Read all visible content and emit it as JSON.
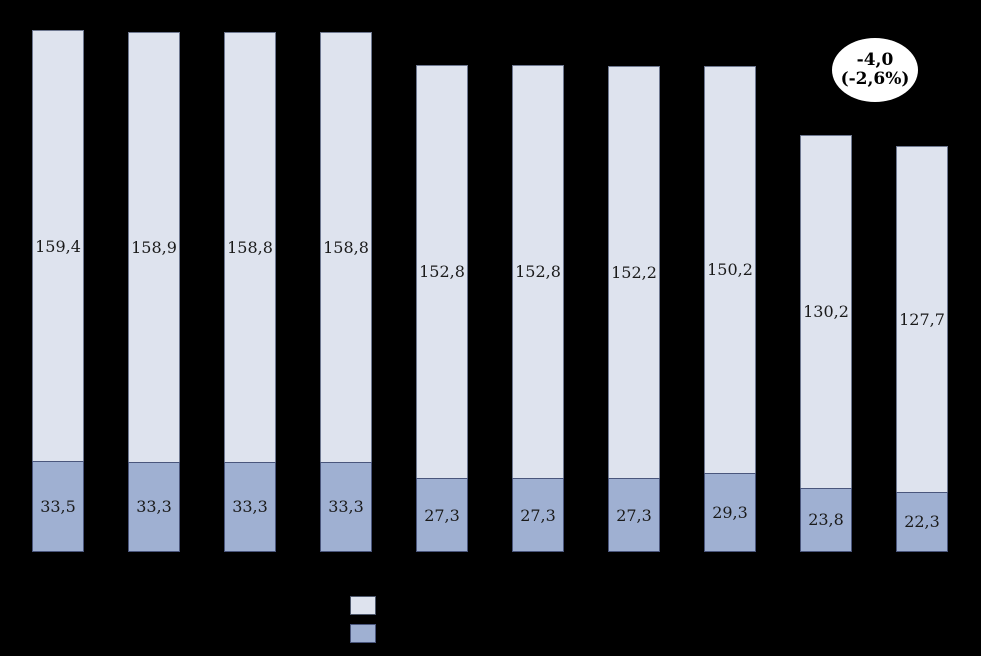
{
  "chart_data": {
    "type": "bar",
    "stacked": true,
    "background": "#000000",
    "bars_count": 10,
    "categories": [
      "",
      "",
      "",
      "",
      "",
      "",
      "",
      "",
      "",
      ""
    ],
    "series": [
      {
        "id": "upper-segment",
        "legend_label": "",
        "color": "#dee3ee",
        "border_color": "#6e7890",
        "values": [
          159.4,
          158.9,
          158.8,
          158.8,
          152.8,
          152.8,
          152.2,
          150.2,
          130.2,
          127.7
        ],
        "labels": [
          "159,4",
          "158,9",
          "158,8",
          "158,8",
          "152,8",
          "152,8",
          "152,2",
          "150,2",
          "130,2",
          "127,7"
        ]
      },
      {
        "id": "lower-segment",
        "legend_label": "",
        "color": "#9fb0d2",
        "border_color": "#4a567c",
        "values": [
          33.5,
          33.3,
          33.3,
          33.3,
          27.3,
          27.3,
          27.3,
          29.3,
          23.8,
          22.3
        ],
        "labels": [
          "33,5",
          "33,3",
          "33,3",
          "33,3",
          "27,3",
          "27,3",
          "27,3",
          "29,3",
          "23,8",
          "22,3"
        ]
      }
    ],
    "value_label_color": "#1a1a1a",
    "annotation": {
      "line1": "-4,0",
      "line2": "(-2,6%)",
      "fill": "#ffffff",
      "text_color": "#000000"
    },
    "legend_position": "bottom-center",
    "grid": false,
    "axes_visible": false,
    "ylim": [
      0,
      193
    ]
  }
}
